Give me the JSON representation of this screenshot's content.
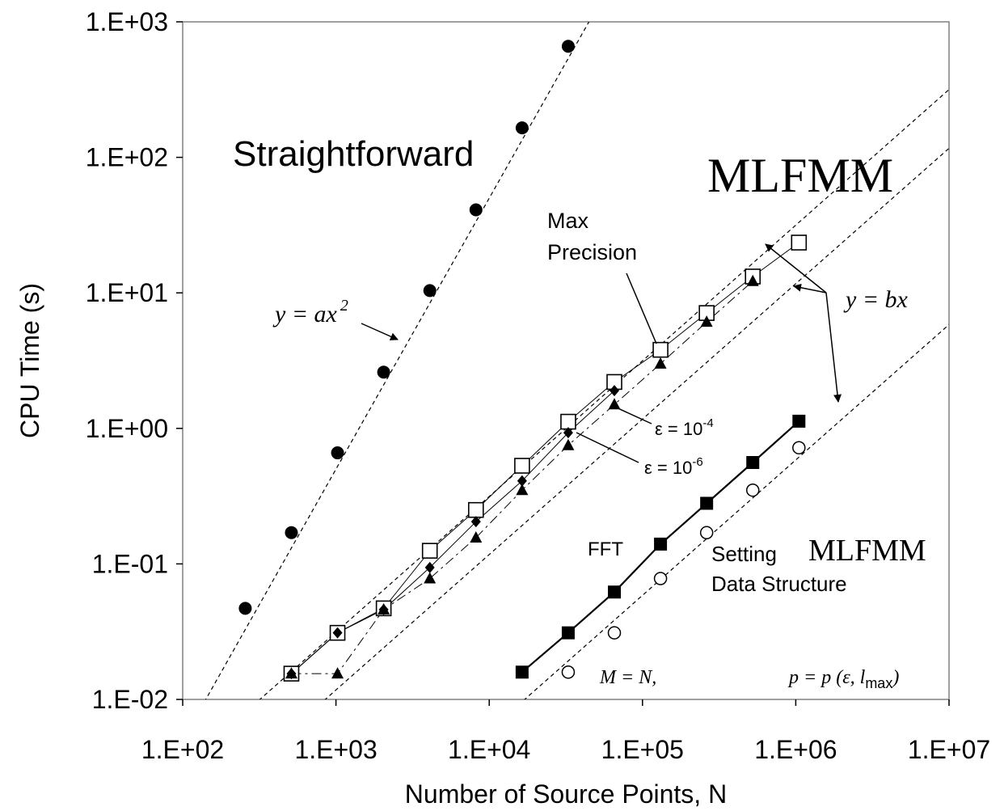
{
  "chart_data": {
    "type": "scatter",
    "title": "",
    "xlabel": "Number of Source Points, N",
    "ylabel": "CPU Time (s)",
    "x_scale": "log",
    "y_scale": "log",
    "xlim": [
      100,
      10000000
    ],
    "ylim": [
      0.01,
      1000
    ],
    "x_ticks": [
      "1.E+02",
      "1.E+03",
      "1.E+04",
      "1.E+05",
      "1.E+06",
      "1.E+07"
    ],
    "y_ticks": [
      "1.E-02",
      "1.E-01",
      "1.E+00",
      "1.E+01",
      "1.E+02",
      "1.E+03"
    ],
    "grid": false,
    "series": [
      {
        "marker": "filled-circle",
        "line": "dashed",
        "x": [
          256,
          512,
          1024,
          2048,
          4096,
          8192,
          16384,
          32768
        ],
        "y": [
          0.047,
          0.17,
          0.66,
          2.6,
          10.4,
          41,
          165,
          660
        ]
      },
      {
        "marker": "open-square",
        "line": "thin-solid",
        "x": [
          512,
          1024,
          2048,
          4096,
          8192,
          16384,
          32768,
          65536,
          131072,
          262144,
          524288,
          1048576
        ],
        "y": [
          0.0155,
          0.031,
          0.047,
          0.125,
          0.25,
          0.53,
          1.12,
          2.2,
          3.8,
          7.1,
          13.2,
          23.5
        ]
      },
      {
        "marker": "filled-diamond",
        "line": "thin-solid",
        "x": [
          512,
          1024,
          2048,
          4096,
          8192,
          16384,
          32768,
          65536
        ],
        "y": [
          0.0155,
          0.031,
          0.046,
          0.094,
          0.205,
          0.41,
          0.93,
          1.9
        ]
      },
      {
        "marker": "filled-triangle",
        "line": "dash-dot",
        "x": [
          512,
          1024,
          2048,
          4096,
          8192,
          16384,
          32768,
          65536,
          131072,
          262144,
          524288
        ],
        "y": [
          0.0155,
          0.0155,
          0.046,
          0.078,
          0.156,
          0.35,
          0.75,
          1.5,
          3.0,
          6.1,
          12.2
        ]
      },
      {
        "marker": "filled-square",
        "line": "thick-solid",
        "x": [
          16384,
          32768,
          65536,
          131072,
          262144,
          524288,
          1048576
        ],
        "y": [
          0.0159,
          0.031,
          0.062,
          0.14,
          0.28,
          0.56,
          1.13
        ]
      },
      {
        "marker": "open-circle",
        "line": "none",
        "x": [
          32768,
          65536,
          131072,
          262144,
          524288,
          1048576
        ],
        "y": [
          0.0159,
          0.031,
          0.078,
          0.17,
          0.35,
          0.72
        ]
      }
    ],
    "annotations": {
      "straightforward": "Straightforward",
      "mlfmm_big": "MLFMM",
      "y_ax2": "y = ax",
      "y_ax2_sup": "2",
      "y_bx": "y = bx",
      "max_line1": "Max",
      "max_line2": "Precision",
      "eps4_prefix": "ε = 10",
      "eps4_sup": "-4",
      "eps6_prefix": "ε = 10",
      "eps6_sup": "-6",
      "fft": "FFT",
      "setting": "Setting",
      "data_structure": "Data Structure",
      "mlfmm_small": "MLFMM",
      "m_eq_n": "M = N,",
      "p_expr": "p = p (ε, l",
      "p_sub": "max",
      "p_close": ")"
    }
  }
}
